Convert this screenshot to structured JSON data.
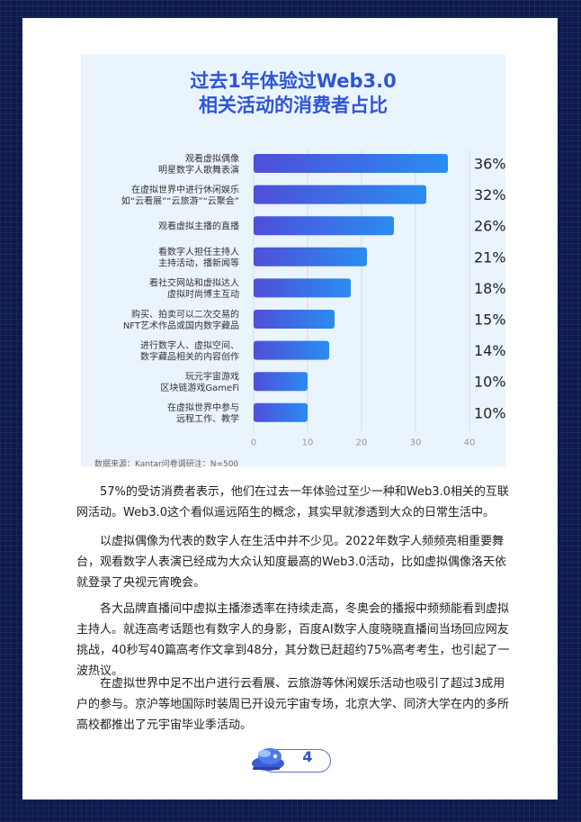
{
  "chart_data": {
    "type": "bar",
    "orientation": "horizontal",
    "title": [
      "过去1年体验过Web3.0",
      "相关活动的消费者占比"
    ],
    "categories": [
      [
        "观看虚拟偶像",
        "明星数字人歌舞表演"
      ],
      [
        "在虚拟世界中进行休闲娱乐",
        "如“云看展”“云旅游”“云聚会”"
      ],
      [
        "观看虚拟主播的直播"
      ],
      [
        "看数字人担任主持人",
        "主持活动，播新闻等"
      ],
      [
        "看社交网站和虚拟达人",
        "虚拟时尚博主互动"
      ],
      [
        "购买、拍卖可以二次交易的",
        "NFT艺术作品或国内数字藏品"
      ],
      [
        "进行数字人、虚拟空间、",
        "数字藏品相关的内容创作"
      ],
      [
        "玩元宇宙游戏",
        "区块链游戏GameFi"
      ],
      [
        "在虚拟世界中参与",
        "远程工作、教学"
      ]
    ],
    "values": [
      36,
      32,
      26,
      21,
      18,
      15,
      14,
      10,
      10
    ],
    "value_labels": [
      "36%",
      "32%",
      "26%",
      "21%",
      "18%",
      "15%",
      "14%",
      "10%",
      "10%"
    ],
    "xticks": [
      "0",
      "10",
      "20",
      "30",
      "40"
    ],
    "xlim": [
      0,
      40
    ],
    "grid": true,
    "colors": {
      "bar_start": "#4f4fd8",
      "bar_end": "#2a8cf0",
      "title": "#2f56d6",
      "panel": "#eaf4fd"
    }
  },
  "source": "数据来源：Kantar问卷调研注：N=500",
  "paragraphs": [
    "57%的受访消费者表示，他们在过去一年体验过至少一种和Web3.0相关的互联网活动。Web3.0这个看似遥远陌生的概念，其实早就渗透到大众的日常生活中。",
    "以虚拟偶像为代表的数字人在生活中并不少见。2022年数字人频频亮相重要舞台，观看数字人表演已经成为大众认知度最高的Web3.0活动，比如虚拟偶像洛天依就登录了央视元宵晚会。",
    "各大品牌直播间中虚拟主播渗透率在持续走高，冬奥会的播报中频频能看到虚拟主持人。就连高考话题也有数字人的身影，百度AI数字人度晓晓直播间当场回应网友挑战，40秒写40篇高考作文拿到48分，其分数已赶超约75%高考考生，也引起了一波热议。",
    "在虚拟世界中足不出户进行云看展、云旅游等休闲娱乐活动也吸引了超过3成用户的参与。京沪等地国际时装周已开设元宇宙专场，北京大学、同济大学在内的多所高校都推出了元宇宙毕业季活动。"
  ],
  "page_number": "4",
  "icons": {
    "badge": "mascot-icon"
  }
}
